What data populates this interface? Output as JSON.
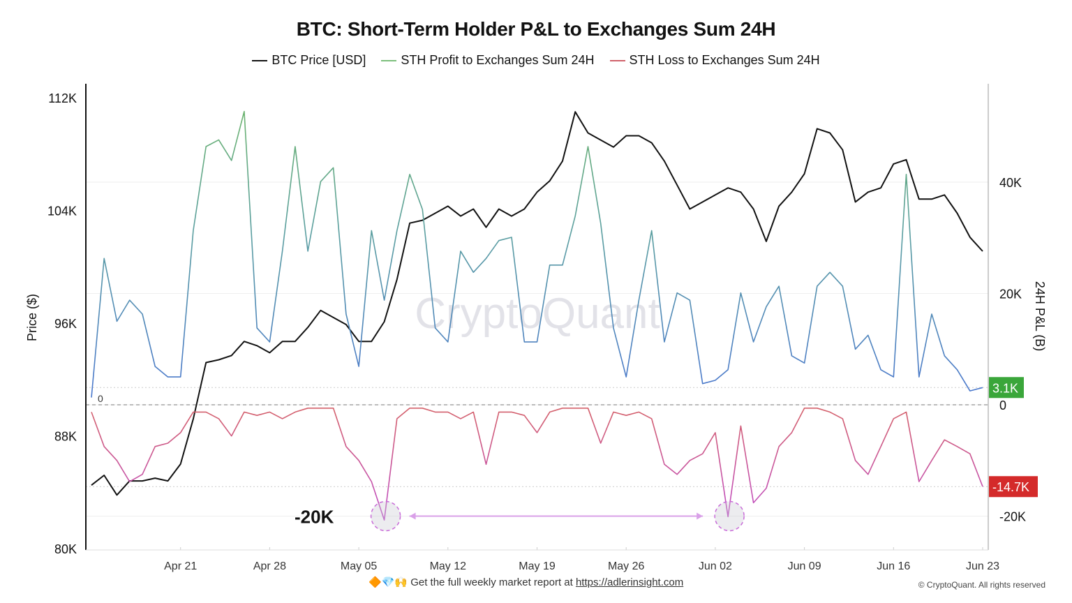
{
  "chart_data": {
    "type": "line",
    "title": "BTC: Short-Term Holder P&L to Exchanges Sum 24H",
    "legend_position": "top",
    "ylabel_left": "Price ($)",
    "ylabel_right": "24H P&L (B)",
    "ylim_left": [
      80000,
      112000
    ],
    "ylim_right": [
      -25800,
      55200
    ],
    "left_ticks": [
      "80K",
      "88K",
      "96K",
      "104K",
      "112K"
    ],
    "left_tick_values": [
      80000,
      88000,
      96000,
      104000,
      112000
    ],
    "right_ticks": [
      "-20K",
      "0",
      "20K",
      "40K"
    ],
    "right_tick_values": [
      -20000,
      0,
      20000,
      40000
    ],
    "x_ticks": [
      "Apr 21",
      "Apr 28",
      "May 05",
      "May 12",
      "May 19",
      "May 26",
      "Jun 02",
      "Jun 09",
      "Jun 16",
      "Jun 23"
    ],
    "x_tick_days": [
      7,
      14,
      21,
      28,
      35,
      42,
      49,
      56,
      63,
      70
    ],
    "x": [
      "Apr 14",
      "Apr 15",
      "Apr 16",
      "Apr 17",
      "Apr 18",
      "Apr 19",
      "Apr 20",
      "Apr 21",
      "Apr 22",
      "Apr 23",
      "Apr 24",
      "Apr 25",
      "Apr 26",
      "Apr 27",
      "Apr 28",
      "Apr 29",
      "Apr 30",
      "May 01",
      "May 02",
      "May 03",
      "May 04",
      "May 05",
      "May 06",
      "May 07",
      "May 08",
      "May 09",
      "May 10",
      "May 11",
      "May 12",
      "May 13",
      "May 14",
      "May 15",
      "May 16",
      "May 17",
      "May 18",
      "May 19",
      "May 20",
      "May 21",
      "May 22",
      "May 23",
      "May 24",
      "May 25",
      "May 26",
      "May 27",
      "May 28",
      "May 29",
      "May 30",
      "May 31",
      "Jun 01",
      "Jun 02",
      "Jun 03",
      "Jun 04",
      "Jun 05",
      "Jun 06",
      "Jun 07",
      "Jun 08",
      "Jun 09",
      "Jun 10",
      "Jun 11",
      "Jun 12",
      "Jun 13",
      "Jun 14",
      "Jun 15",
      "Jun 16",
      "Jun 17",
      "Jun 18",
      "Jun 19",
      "Jun 20",
      "Jun 21",
      "Jun 22",
      "Jun 23"
    ],
    "series": [
      {
        "name": "BTC Price [USD]",
        "axis": "left",
        "color": "#111111",
        "values": [
          84500,
          85200,
          83800,
          84800,
          84800,
          85000,
          84800,
          86000,
          89200,
          93200,
          93400,
          93700,
          94700,
          94400,
          93900,
          94700,
          94700,
          95700,
          96900,
          96400,
          95900,
          94700,
          94700,
          96100,
          99100,
          103100,
          103300,
          103800,
          104300,
          103600,
          104100,
          102800,
          104100,
          103600,
          104100,
          105300,
          106100,
          107500,
          111000,
          109500,
          109000,
          108500,
          109300,
          109300,
          108800,
          107500,
          105800,
          104100,
          104600,
          105100,
          105600,
          105300,
          104100,
          101800,
          104300,
          105300,
          106600,
          109800,
          109500,
          108300,
          104600,
          105300,
          105600,
          107300,
          107600,
          104800,
          104800,
          105100,
          103800,
          102100,
          101100
        ]
      },
      {
        "name": "STH Profit to Exchanges Sum 24H",
        "axis": "right",
        "color": "#6aaf6a",
        "color_low": "#4f7fc8",
        "values": [
          1300,
          26300,
          15000,
          18800,
          16300,
          6900,
          5000,
          5000,
          31300,
          46400,
          47600,
          43900,
          52700,
          13800,
          11300,
          27600,
          46400,
          27600,
          40100,
          42600,
          16300,
          6900,
          31300,
          18800,
          31300,
          41400,
          35100,
          13800,
          11300,
          27600,
          23800,
          26300,
          29500,
          30100,
          11300,
          11300,
          25100,
          25100,
          33900,
          46400,
          32600,
          13800,
          5000,
          18800,
          31300,
          11300,
          20100,
          18800,
          3800,
          4400,
          6300,
          20100,
          11300,
          17600,
          21300,
          8800,
          7500,
          21300,
          23800,
          21300,
          10000,
          12500,
          6300,
          5000,
          41400,
          5000,
          16300,
          8800,
          6300,
          2500,
          3100
        ]
      },
      {
        "name": "STH Loss to Exchanges Sum 24H",
        "axis": "right",
        "color": "#d0606a",
        "color_low": "#c050c8",
        "values": [
          -1300,
          -7500,
          -10000,
          -13800,
          -12500,
          -7500,
          -6900,
          -5000,
          -1300,
          -1300,
          -2500,
          -5600,
          -1300,
          -1900,
          -1300,
          -2500,
          -1300,
          -600,
          -600,
          -600,
          -7500,
          -10000,
          -13800,
          -20700,
          -2500,
          -600,
          -600,
          -1300,
          -1300,
          -2500,
          -1300,
          -10700,
          -1300,
          -1300,
          -1900,
          -5000,
          -1300,
          -600,
          -600,
          -600,
          -6900,
          -1300,
          -1900,
          -1300,
          -2500,
          -10700,
          -12500,
          -10000,
          -8800,
          -5000,
          -20100,
          -3800,
          -17600,
          -15000,
          -7500,
          -5000,
          -600,
          -600,
          -1300,
          -2500,
          -10000,
          -12500,
          -7500,
          -2500,
          -1300,
          -13800,
          -10000,
          -6300,
          -7500,
          -8800,
          -14700
        ]
      }
    ],
    "last_value_labels": [
      {
        "text": "3.1K",
        "value": 3100,
        "color": "#3aa63a"
      },
      {
        "text": "-14.7K",
        "value": -14700,
        "color": "#d42a2a"
      }
    ],
    "zero_label": "0",
    "annotations": {
      "label": "-20K",
      "circled_dates": [
        "May 07",
        "Jun 03"
      ],
      "circle_value": -20000,
      "arrow_color": "#d9a0e8"
    },
    "watermark": "CryptoQuant"
  },
  "footer": {
    "emoji": "🔶💎🙌",
    "text": "Get the full weekly market report at ",
    "link": "https://adlerinsight.com",
    "copyright": "© CryptoQuant. All rights reserved"
  }
}
